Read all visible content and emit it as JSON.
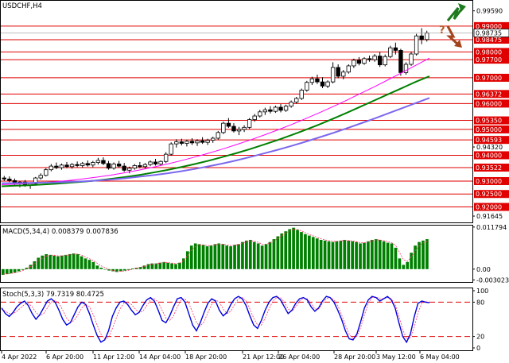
{
  "chart_data": {
    "type": "candlestick",
    "symbol_title": "USDCHF,H4",
    "price_panel": {
      "ylim": [
        0.914,
        0.9998
      ],
      "axis_labels": [
        "0.99590",
        "0.99000",
        "0.98475",
        "0.98000",
        "0.97700",
        "0.97000",
        "0.96372",
        "0.96000",
        "0.95350",
        "0.95000",
        "0.94593",
        "0.94320",
        "0.94000",
        "0.93522",
        "0.93000",
        "0.92500",
        "0.92000",
        "0.91645"
      ],
      "red_levels": [
        0.99,
        0.98475,
        0.98,
        0.977,
        0.97,
        0.96372,
        0.96,
        0.9535,
        0.95,
        0.94593,
        0.94,
        0.93522,
        0.93,
        0.925,
        0.92
      ],
      "current_price": {
        "value": 0.98735,
        "label": "0.98735"
      },
      "candles_ohlc": [
        [
          0.9312,
          0.932,
          0.93,
          0.9308
        ],
        [
          0.9308,
          0.9318,
          0.9296,
          0.9302
        ],
        [
          0.9302,
          0.931,
          0.9284,
          0.929
        ],
        [
          0.929,
          0.93,
          0.9276,
          0.9296
        ],
        [
          0.9296,
          0.9304,
          0.9278,
          0.9284
        ],
        [
          0.9284,
          0.9294,
          0.927,
          0.929
        ],
        [
          0.929,
          0.9316,
          0.9286,
          0.9312
        ],
        [
          0.9312,
          0.933,
          0.9306,
          0.9322
        ],
        [
          0.9322,
          0.935,
          0.9318,
          0.9344
        ],
        [
          0.9344,
          0.9366,
          0.9338,
          0.9358
        ],
        [
          0.9358,
          0.9372,
          0.9346,
          0.9352
        ],
        [
          0.9352,
          0.9368,
          0.9344,
          0.9362
        ],
        [
          0.9362,
          0.9374,
          0.935,
          0.9356
        ],
        [
          0.9356,
          0.937,
          0.9348,
          0.9364
        ],
        [
          0.9364,
          0.9376,
          0.9354,
          0.936
        ],
        [
          0.936,
          0.9374,
          0.9352,
          0.9368
        ],
        [
          0.9368,
          0.938,
          0.9356,
          0.9362
        ],
        [
          0.9362,
          0.9378,
          0.9354,
          0.9372
        ],
        [
          0.9372,
          0.939,
          0.9364,
          0.938
        ],
        [
          0.938,
          0.9392,
          0.9362,
          0.9368
        ],
        [
          0.9368,
          0.9378,
          0.9344,
          0.935
        ],
        [
          0.935,
          0.9372,
          0.9344,
          0.9366
        ],
        [
          0.9366,
          0.9378,
          0.9352,
          0.9358
        ],
        [
          0.9358,
          0.937,
          0.9336,
          0.9342
        ],
        [
          0.9342,
          0.9356,
          0.933,
          0.935
        ],
        [
          0.935,
          0.9366,
          0.9344,
          0.936
        ],
        [
          0.936,
          0.9374,
          0.935,
          0.9356
        ],
        [
          0.9356,
          0.937,
          0.9348,
          0.9364
        ],
        [
          0.9364,
          0.938,
          0.9358,
          0.9374
        ],
        [
          0.9374,
          0.9386,
          0.936,
          0.9366
        ],
        [
          0.9366,
          0.938,
          0.9358,
          0.9376
        ],
        [
          0.9376,
          0.9412,
          0.937,
          0.9404
        ],
        [
          0.9404,
          0.945,
          0.9398,
          0.9444
        ],
        [
          0.9444,
          0.9462,
          0.943,
          0.9452
        ],
        [
          0.9452,
          0.9464,
          0.9438,
          0.9446
        ],
        [
          0.9446,
          0.946,
          0.9434,
          0.9454
        ],
        [
          0.9454,
          0.9466,
          0.944,
          0.9448
        ],
        [
          0.9448,
          0.9462,
          0.9436,
          0.9456
        ],
        [
          0.9456,
          0.947,
          0.9444,
          0.945
        ],
        [
          0.945,
          0.9464,
          0.944,
          0.9458
        ],
        [
          0.9458,
          0.9472,
          0.9448,
          0.9466
        ],
        [
          0.9466,
          0.9494,
          0.946,
          0.9488
        ],
        [
          0.9488,
          0.953,
          0.9482,
          0.9524
        ],
        [
          0.9524,
          0.9544,
          0.9506,
          0.9512
        ],
        [
          0.9512,
          0.9524,
          0.9488,
          0.9494
        ],
        [
          0.9494,
          0.951,
          0.9478,
          0.95
        ],
        [
          0.95,
          0.9516,
          0.949,
          0.9508
        ],
        [
          0.9508,
          0.9544,
          0.9502,
          0.9538
        ],
        [
          0.9538,
          0.956,
          0.953,
          0.9552
        ],
        [
          0.9552,
          0.9576,
          0.9546,
          0.9568
        ],
        [
          0.9568,
          0.9584,
          0.9556,
          0.9576
        ],
        [
          0.9576,
          0.959,
          0.9562,
          0.957
        ],
        [
          0.957,
          0.9592,
          0.9564,
          0.9586
        ],
        [
          0.9586,
          0.9598,
          0.9566,
          0.9574
        ],
        [
          0.9574,
          0.9596,
          0.9568,
          0.959
        ],
        [
          0.959,
          0.9612,
          0.9584,
          0.9606
        ],
        [
          0.9606,
          0.9626,
          0.96,
          0.962
        ],
        [
          0.962,
          0.9658,
          0.9614,
          0.9652
        ],
        [
          0.9652,
          0.9688,
          0.9646,
          0.9682
        ],
        [
          0.9682,
          0.9704,
          0.9672,
          0.9696
        ],
        [
          0.9696,
          0.9712,
          0.9676,
          0.9684
        ],
        [
          0.9684,
          0.9702,
          0.966,
          0.9668
        ],
        [
          0.9668,
          0.969,
          0.966,
          0.9684
        ],
        [
          0.9684,
          0.976,
          0.9678,
          0.974
        ],
        [
          0.974,
          0.9752,
          0.9698,
          0.9706
        ],
        [
          0.9706,
          0.973,
          0.9694,
          0.9722
        ],
        [
          0.9722,
          0.9752,
          0.9716,
          0.9746
        ],
        [
          0.9746,
          0.9774,
          0.9738,
          0.9768
        ],
        [
          0.9768,
          0.978,
          0.9748,
          0.9756
        ],
        [
          0.9756,
          0.978,
          0.975,
          0.9774
        ],
        [
          0.9774,
          0.9786,
          0.9762,
          0.977
        ],
        [
          0.977,
          0.9792,
          0.9762,
          0.9784
        ],
        [
          0.9784,
          0.98,
          0.9742,
          0.975
        ],
        [
          0.975,
          0.979,
          0.9744,
          0.9782
        ],
        [
          0.9782,
          0.9824,
          0.9776,
          0.9816
        ],
        [
          0.9816,
          0.9836,
          0.979,
          0.9806
        ],
        [
          0.9806,
          0.9812,
          0.9708,
          0.972
        ],
        [
          0.972,
          0.976,
          0.9712,
          0.9752
        ],
        [
          0.9752,
          0.98,
          0.9746,
          0.9792
        ],
        [
          0.9792,
          0.987,
          0.9786,
          0.9862
        ],
        [
          0.9862,
          0.9892,
          0.983,
          0.9848
        ],
        [
          0.9848,
          0.9882,
          0.984,
          0.9873
        ]
      ],
      "moving_averages": [
        {
          "color": "#ff00ff",
          "values": [
            0.9286,
            0.9288,
            0.9291,
            0.9294,
            0.9298,
            0.9303,
            0.9309,
            0.9316,
            0.9324,
            0.9333,
            0.9343,
            0.9354,
            0.9366,
            0.9379,
            0.9393,
            0.9408,
            0.9424,
            0.9441,
            0.9459,
            0.9478,
            0.9498,
            0.9519,
            0.9541,
            0.9564,
            0.9588,
            0.9613,
            0.9639,
            0.9665,
            0.9692,
            0.972,
            0.9748,
            0.9776
          ]
        },
        {
          "color": "#008000",
          "values": [
            0.928,
            0.9282,
            0.9284,
            0.9287,
            0.929,
            0.9294,
            0.9298,
            0.9303,
            0.9309,
            0.9316,
            0.9324,
            0.9333,
            0.9343,
            0.9354,
            0.9366,
            0.9379,
            0.9393,
            0.9408,
            0.9424,
            0.9441,
            0.9459,
            0.9478,
            0.9498,
            0.9519,
            0.9541,
            0.9564,
            0.9588,
            0.9612,
            0.9636,
            0.966,
            0.9684,
            0.9706
          ]
        },
        {
          "color": "#7b68ee",
          "values": [
            0.9292,
            0.9292,
            0.9293,
            0.9294,
            0.9295,
            0.9297,
            0.9299,
            0.9302,
            0.9306,
            0.9311,
            0.9317,
            0.9323,
            0.933,
            0.9338,
            0.9347,
            0.9357,
            0.9368,
            0.938,
            0.9393,
            0.9407,
            0.9421,
            0.9436,
            0.9452,
            0.9469,
            0.9486,
            0.9504,
            0.9523,
            0.9542,
            0.9562,
            0.9582,
            0.9602,
            0.9622
          ]
        }
      ]
    },
    "macd_panel": {
      "title": "MACD(5,34,4) 0.008379 0.007836",
      "ylim": [
        -0.0036,
        0.0122
      ],
      "axis_labels": [
        "0.011794",
        "0.00",
        "-0.003023"
      ],
      "histogram": [
        -0.0016,
        -0.0014,
        -0.0012,
        -0.001,
        -0.0006,
        -0.0002,
        0.0004,
        0.0012,
        0.0022,
        0.0032,
        0.0038,
        0.0042,
        0.004,
        0.0038,
        0.0036,
        0.0038,
        0.004,
        0.0042,
        0.0044,
        0.0042,
        0.0036,
        0.003,
        0.0026,
        0.002,
        0.001,
        0.0004,
        0.0,
        -0.0004,
        -0.0006,
        -0.0008,
        -0.0006,
        -0.0004,
        -0.0002,
        0.0002,
        0.0004,
        0.0006,
        0.001,
        0.0014,
        0.0016,
        0.0016,
        0.0018,
        0.002,
        0.0018,
        0.0016,
        0.0014,
        0.0018,
        0.003,
        0.005,
        0.0066,
        0.0072,
        0.007,
        0.0068,
        0.0064,
        0.0066,
        0.007,
        0.0072,
        0.007,
        0.0066,
        0.0064,
        0.0068,
        0.007,
        0.0076,
        0.008,
        0.0082,
        0.0076,
        0.0072,
        0.0066,
        0.007,
        0.0076,
        0.0084,
        0.0092,
        0.01,
        0.0106,
        0.0112,
        0.0116,
        0.011,
        0.0104,
        0.0098,
        0.0094,
        0.009,
        0.0086,
        0.0082,
        0.008,
        0.0078,
        0.0076,
        0.0078,
        0.008,
        0.0082,
        0.008,
        0.0078,
        0.0076,
        0.0072,
        0.0074,
        0.0078,
        0.0082,
        0.0084,
        0.0082,
        0.0078,
        0.0074,
        0.0072,
        0.006,
        0.003,
        0.0012,
        0.002,
        0.0046,
        0.0066,
        0.0076,
        0.008,
        0.0084
      ],
      "signal": [
        -0.0014,
        -0.0013,
        -0.0012,
        -0.001,
        -0.0008,
        -0.0004,
        0.0001,
        0.0007,
        0.0015,
        0.0024,
        0.0031,
        0.0037,
        0.0039,
        0.0039,
        0.0037,
        0.0037,
        0.0038,
        0.004,
        0.0042,
        0.0042,
        0.0039,
        0.0034,
        0.0029,
        0.0024,
        0.0016,
        0.0009,
        0.0004,
        -0.0001,
        -0.0004,
        -0.0006,
        -0.0006,
        -0.0005,
        -0.0003,
        0.0,
        0.0003,
        0.0005,
        0.0008,
        0.0011,
        0.0014,
        0.0015,
        0.0017,
        0.0019,
        0.0018,
        0.0017,
        0.0015,
        0.0017,
        0.0024,
        0.0038,
        0.0054,
        0.0064,
        0.0068,
        0.0068,
        0.0066,
        0.0066,
        0.0068,
        0.007,
        0.007,
        0.0068,
        0.0066,
        0.0067,
        0.0069,
        0.0073,
        0.0077,
        0.008,
        0.0078,
        0.0075,
        0.007,
        0.007,
        0.0073,
        0.0079,
        0.0086,
        0.0094,
        0.0101,
        0.0107,
        0.0112,
        0.0111,
        0.0107,
        0.0102,
        0.0097,
        0.0093,
        0.0089,
        0.0085,
        0.0082,
        0.008,
        0.0078,
        0.0078,
        0.0079,
        0.0081,
        0.008,
        0.0079,
        0.0077,
        0.0074,
        0.0074,
        0.0076,
        0.0079,
        0.0082,
        0.0082,
        0.008,
        0.0077,
        0.0074,
        0.0066,
        0.0046,
        0.0026,
        0.0022,
        0.0034,
        0.0052,
        0.0066,
        0.0074,
        0.0078
      ]
    },
    "stoch_panel": {
      "title": "Stoch(5,3,3) 79.7319 80.4725",
      "ylim": [
        0,
        100
      ],
      "axis_labels": [
        "100",
        "80",
        "20",
        "0"
      ],
      "dashed_levels": [
        80,
        20
      ],
      "main": [
        70,
        60,
        55,
        62,
        72,
        78,
        82,
        74,
        60,
        50,
        58,
        70,
        82,
        86,
        80,
        66,
        50,
        40,
        44,
        58,
        72,
        80,
        76,
        60,
        40,
        22,
        10,
        14,
        30,
        55,
        70,
        80,
        82,
        76,
        66,
        58,
        62,
        74,
        84,
        88,
        82,
        66,
        48,
        44,
        56,
        72,
        86,
        88,
        80,
        60,
        40,
        30,
        44,
        62,
        78,
        86,
        82,
        66,
        56,
        62,
        76,
        86,
        90,
        86,
        74,
        56,
        40,
        34,
        48,
        66,
        80,
        88,
        90,
        84,
        72,
        60,
        66,
        78,
        86,
        88,
        84,
        72,
        64,
        70,
        82,
        90,
        88,
        80,
        66,
        50,
        30,
        16,
        14,
        24,
        46,
        70,
        84,
        90,
        88,
        82,
        86,
        90,
        84,
        70,
        44,
        20,
        10,
        24,
        54,
        78,
        82,
        80,
        79
      ],
      "signal": [
        68,
        64,
        60,
        60,
        64,
        70,
        76,
        78,
        72,
        62,
        56,
        60,
        70,
        80,
        83,
        78,
        66,
        52,
        45,
        48,
        58,
        70,
        76,
        72,
        58,
        40,
        24,
        16,
        18,
        34,
        52,
        68,
        78,
        80,
        76,
        68,
        62,
        64,
        74,
        84,
        86,
        80,
        66,
        52,
        48,
        56,
        72,
        84,
        86,
        78,
        62,
        44,
        38,
        46,
        62,
        76,
        84,
        80,
        68,
        60,
        64,
        76,
        86,
        88,
        82,
        68,
        52,
        40,
        40,
        52,
        68,
        82,
        88,
        88,
        80,
        68,
        64,
        72,
        82,
        87,
        86,
        78,
        68,
        68,
        78,
        86,
        88,
        84,
        74,
        58,
        40,
        24,
        16,
        20,
        36,
        58,
        78,
        88,
        89,
        86,
        86,
        88,
        86,
        76,
        56,
        32,
        16,
        18,
        36,
        62,
        78,
        81,
        80
      ]
    },
    "x_axis_labels": [
      "4 Apr 2022",
      "6 Apr 20:00",
      "11 Apr 12:00",
      "14 Apr 04:00",
      "18 Apr 20:00",
      "21 Apr 12:00",
      "26 Apr 04:00",
      "28 Apr 20:00",
      "3 May 12:00",
      "6 May 04:00"
    ]
  }
}
